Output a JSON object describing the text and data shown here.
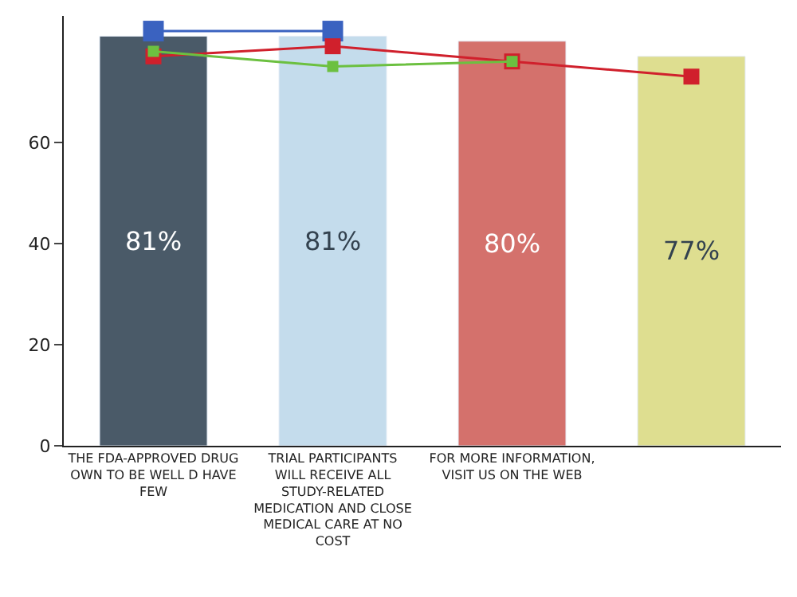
{
  "chart_data": {
    "type": "bar",
    "categories": [
      "THE FDA-APPROVED DRUG OWN TO BE WELL D HAVE FEW",
      "TRIAL PARTICIPANTS WILL RECEIVE ALL STUDY-RELATED MEDICATION AND CLOSE MEDICAL CARE AT NO COST",
      "FOR MORE INFORMATION, VISIT US ON THE WEB",
      null
    ],
    "values": [
      81,
      81,
      80,
      77
    ],
    "colors": [
      "#4a5a68",
      "#c4dcec",
      "#d4716c",
      "#dede90"
    ],
    "value_labels": [
      "81%",
      "81%",
      "80%",
      "77%"
    ],
    "series": [
      {
        "type": "line",
        "color": "#3a62c0",
        "values": [
          82,
          82,
          null,
          null
        ]
      },
      {
        "type": "line",
        "color": "#d0202c",
        "values": [
          77,
          79,
          76,
          73
        ]
      },
      {
        "type": "line",
        "color": "#6cc040",
        "values": [
          78,
          75,
          76,
          null
        ]
      }
    ],
    "marker": "square",
    "ylim": [
      0,
      85
    ],
    "yticks": [
      0,
      20,
      40,
      60
    ]
  }
}
